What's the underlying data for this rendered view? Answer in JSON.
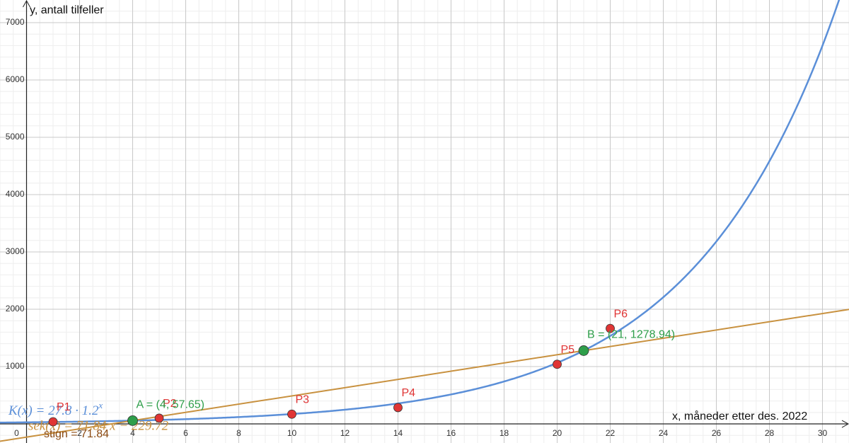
{
  "chart_data": {
    "type": "function-plot",
    "x_label": "x, måneder etter des. 2022",
    "y_label": "y, antall tilfeller",
    "xlim": [
      -1,
      31
    ],
    "ylim": [
      -333,
      7395
    ],
    "xticks": [
      0,
      2,
      4,
      6,
      8,
      10,
      12,
      14,
      16,
      18,
      20,
      22,
      24,
      26,
      28,
      30
    ],
    "yticks": [
      1000,
      2000,
      3000,
      4000,
      5000,
      6000,
      7000
    ],
    "grid": true,
    "functions": [
      {
        "kind": "exponential",
        "label": "K(x) = 27.8 · 1.2",
        "label_exponent": "x",
        "a": 27.8,
        "b": 1.2,
        "color": "#5b8fd8"
      },
      {
        "kind": "linear",
        "label": "sek(x) = 71.84 x − 229.72",
        "slope": 71.84,
        "intercept": -229.72,
        "color": "#c8913f"
      }
    ],
    "slope_label": "stign = 71.84",
    "slope_value": 71.84,
    "points": [
      {
        "label": "P1",
        "x": 1,
        "y": 37,
        "color": "#e03535"
      },
      {
        "label": "P2",
        "x": 5,
        "y": 100,
        "color": "#e03535"
      },
      {
        "label": "P3",
        "x": 10,
        "y": 170,
        "color": "#e03535"
      },
      {
        "label": "P4",
        "x": 14,
        "y": 285,
        "color": "#e03535"
      },
      {
        "label": "P5",
        "x": 20,
        "y": 1040,
        "color": "#e03535"
      },
      {
        "label": "P6",
        "x": 22,
        "y": 1665,
        "color": "#e03535"
      },
      {
        "label": "A = (4, 57.65)",
        "x": 4,
        "y": 57.65,
        "color": "#2e9e4a"
      },
      {
        "label": "B = (21, 1278.94)",
        "x": 21,
        "y": 1278.94,
        "color": "#2e9e4a"
      }
    ]
  }
}
